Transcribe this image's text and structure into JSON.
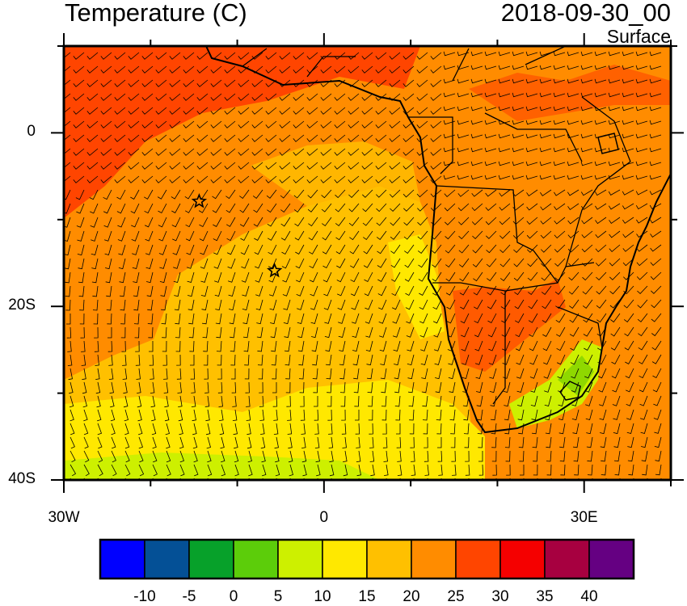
{
  "title": "Temperature (C)",
  "valid_time": "2018-09-30_00",
  "level": "Surface",
  "map": {
    "lon_range": [
      -30,
      40
    ],
    "lat_range": [
      -40,
      10
    ],
    "x_ticks": [
      {
        "lon": -30,
        "label": "30W"
      },
      {
        "lon": 0,
        "label": "0"
      },
      {
        "lon": 30,
        "label": "30E"
      }
    ],
    "y_ticks": [
      {
        "lat": 0,
        "label": "0"
      },
      {
        "lat": -20,
        "label": "20S"
      },
      {
        "lat": -40,
        "label": "40S"
      }
    ],
    "markers": [
      {
        "name": "Ascension Island",
        "lon": -14.4,
        "lat": -7.9,
        "symbol": "star"
      },
      {
        "name": "Saint Helena",
        "lon": -5.7,
        "lat": -15.9,
        "symbol": "star"
      }
    ]
  },
  "colorbar": {
    "colors": [
      "#0000FF",
      "#045096",
      "#07A12A",
      "#5CCD0A",
      "#CDF000",
      "#FFE800",
      "#FFC000",
      "#FF8C00",
      "#FF4500",
      "#F50000",
      "#A70040",
      "#650082"
    ],
    "labels": [
      "-10",
      "-5",
      "0",
      "5",
      "10",
      "15",
      "20",
      "25",
      "30",
      "35",
      "40"
    ]
  },
  "overlay": "wind-barbs"
}
